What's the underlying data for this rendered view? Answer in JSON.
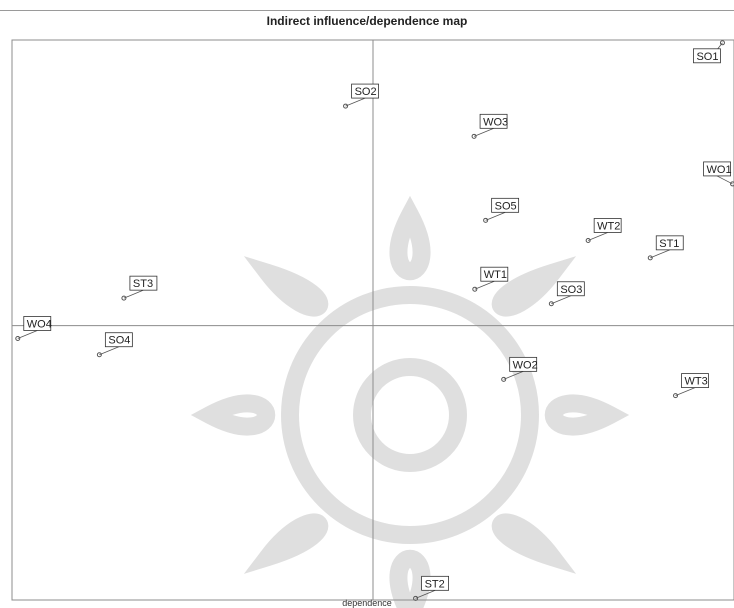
{
  "title": "Indirect influence/dependence map",
  "chart_data": {
    "type": "scatter",
    "title": "Indirect influence/dependence map",
    "xlabel": "dependence",
    "ylabel": "",
    "xlim": [
      0,
      100
    ],
    "ylim": [
      0,
      100
    ],
    "grid": false,
    "axis_cross": {
      "x": 50,
      "y": 49
    },
    "points": [
      {
        "label": "SO1",
        "x": 98.4,
        "y": 99.5
      },
      {
        "label": "SO2",
        "x": 46.2,
        "y": 88.2
      },
      {
        "label": "WO3",
        "x": 64.0,
        "y": 82.8
      },
      {
        "label": "WO1",
        "x": 99.8,
        "y": 74.3
      },
      {
        "label": "SO5",
        "x": 65.6,
        "y": 67.8
      },
      {
        "label": "ST1",
        "x": 88.4,
        "y": 61.1
      },
      {
        "label": "WT2",
        "x": 79.8,
        "y": 64.2
      },
      {
        "label": "WT1",
        "x": 64.1,
        "y": 55.5
      },
      {
        "label": "SO3",
        "x": 74.7,
        "y": 52.9
      },
      {
        "label": "ST3",
        "x": 15.5,
        "y": 53.9
      },
      {
        "label": "WO4",
        "x": 0.8,
        "y": 46.7
      },
      {
        "label": "SO4",
        "x": 12.1,
        "y": 43.8
      },
      {
        "label": "WO2",
        "x": 68.1,
        "y": 39.4
      },
      {
        "label": "WT3",
        "x": 91.9,
        "y": 36.5
      },
      {
        "label": "ST2",
        "x": 55.9,
        "y": 0.3
      }
    ]
  },
  "colors": {
    "axis": "#8c8c8c",
    "point": "#555555",
    "label_border": "#333333",
    "watermark": "#dcdcdc"
  }
}
